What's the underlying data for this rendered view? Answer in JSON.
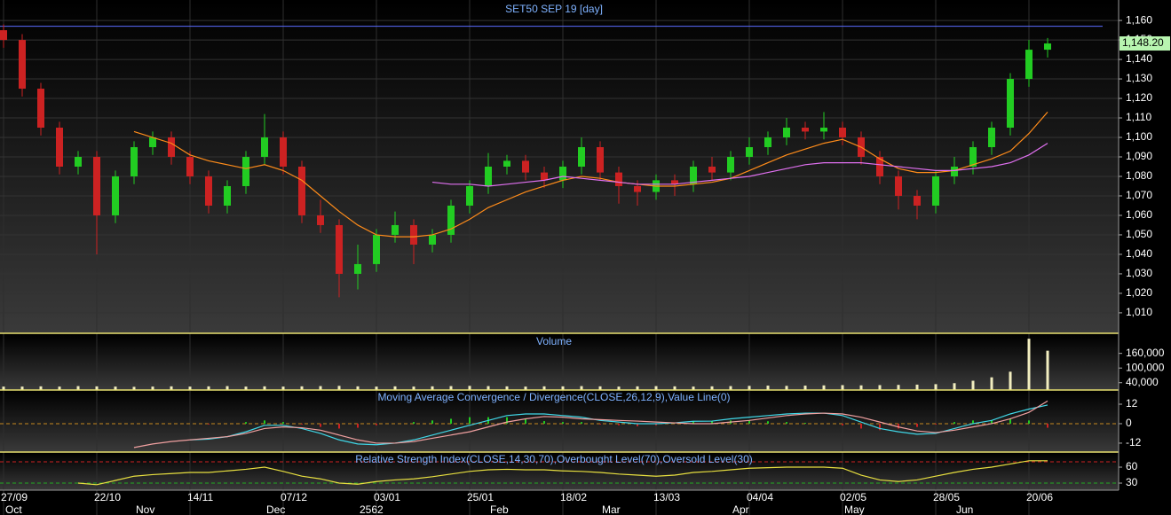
{
  "chart_data": [
    {
      "type": "candlestick",
      "title": "SET50 SEP 19   [day]",
      "categories": [
        "27/09",
        null,
        null,
        null,
        null,
        "22/10",
        null,
        null,
        null,
        null,
        "14/11",
        null,
        null,
        null,
        null,
        "07/12",
        null,
        null,
        null,
        null,
        "03/01",
        null,
        null,
        null,
        null,
        "25/01",
        null,
        null,
        null,
        null,
        "18/02",
        null,
        null,
        null,
        null,
        "13/03",
        null,
        null,
        null,
        null,
        "04/04",
        null,
        null,
        null,
        null,
        "02/05",
        null,
        null,
        null,
        null,
        "28/05",
        null,
        null,
        null,
        null,
        "20/06",
        null
      ],
      "months": [
        "Oct",
        null,
        null,
        null,
        null,
        null,
        null,
        "Nov",
        null,
        null,
        null,
        null,
        null,
        null,
        "Dec",
        null,
        null,
        null,
        null,
        "2562",
        null,
        null,
        null,
        null,
        null,
        null,
        "Feb",
        null,
        null,
        null,
        null,
        null,
        "Mar",
        null,
        null,
        null,
        null,
        null,
        null,
        "Apr",
        null,
        null,
        null,
        null,
        null,
        "May",
        null,
        null,
        null,
        null,
        null,
        "Jun",
        null,
        null,
        null,
        null,
        null
      ],
      "open": [
        1155,
        1150,
        1125,
        1105,
        1085,
        1090,
        1060,
        1080,
        1095,
        1100,
        1090,
        1080,
        1065,
        1075,
        1090,
        1100,
        1085,
        1060,
        1055,
        1030,
        1035,
        1050,
        1055,
        1045,
        1050,
        1065,
        1075,
        1085,
        1088,
        1082,
        1078,
        1085,
        1095,
        1082,
        1075,
        1072,
        1078,
        1076,
        1085,
        1082,
        1090,
        1095,
        1100,
        1105,
        1103,
        1105,
        1100,
        1090,
        1080,
        1070,
        1065,
        1080,
        1085,
        1095,
        1105,
        1130,
        1145
      ],
      "high": [
        1158,
        1153,
        1128,
        1108,
        1093,
        1093,
        1083,
        1098,
        1103,
        1103,
        1093,
        1083,
        1078,
        1093,
        1112,
        1103,
        1088,
        1068,
        1058,
        1045,
        1053,
        1062,
        1058,
        1053,
        1068,
        1078,
        1092,
        1091,
        1091,
        1085,
        1088,
        1100,
        1098,
        1085,
        1078,
        1081,
        1081,
        1088,
        1090,
        1093,
        1100,
        1103,
        1110,
        1108,
        1113,
        1108,
        1103,
        1093,
        1083,
        1073,
        1083,
        1090,
        1098,
        1108,
        1133,
        1150,
        1151
      ],
      "low": [
        1146,
        1121,
        1101,
        1081,
        1081,
        1040,
        1056,
        1076,
        1091,
        1086,
        1076,
        1061,
        1061,
        1071,
        1086,
        1081,
        1056,
        1051,
        1018,
        1022,
        1031,
        1046,
        1035,
        1041,
        1046,
        1061,
        1071,
        1081,
        1078,
        1074,
        1074,
        1081,
        1078,
        1066,
        1065,
        1068,
        1070,
        1072,
        1078,
        1078,
        1086,
        1091,
        1096,
        1099,
        1099,
        1096,
        1086,
        1076,
        1063,
        1058,
        1061,
        1076,
        1081,
        1091,
        1101,
        1126,
        1141
      ],
      "close": [
        1150,
        1125,
        1105,
        1085,
        1090,
        1060,
        1080,
        1095,
        1100,
        1090,
        1080,
        1065,
        1075,
        1090,
        1100,
        1085,
        1060,
        1055,
        1030,
        1035,
        1050,
        1055,
        1045,
        1050,
        1065,
        1075,
        1085,
        1088,
        1082,
        1078,
        1085,
        1095,
        1082,
        1075,
        1072,
        1078,
        1076,
        1085,
        1082,
        1090,
        1095,
        1100,
        1105,
        1103,
        1105,
        1100,
        1090,
        1080,
        1070,
        1065,
        1080,
        1085,
        1095,
        1105,
        1130,
        1145,
        1148.2
      ],
      "last_label": "1,148.20",
      "up_color": "#22cc22",
      "down_color": "#cc2222",
      "series": [
        {
          "color": "#ff8c1a",
          "values": [
            null,
            null,
            null,
            null,
            null,
            null,
            null,
            1103,
            1100,
            1097,
            1091,
            1088,
            1086,
            1084,
            1086,
            1083,
            1078,
            1070,
            1062,
            1055,
            1050,
            1049,
            1049,
            1050,
            1053,
            1058,
            1064,
            1068,
            1072,
            1075,
            1078,
            1080,
            1079,
            1077,
            1076,
            1075,
            1075,
            1076,
            1077,
            1079,
            1083,
            1087,
            1091,
            1094,
            1097,
            1099,
            1095,
            1089,
            1084,
            1082,
            1082,
            1083,
            1086,
            1089,
            1093,
            1102,
            1113
          ]
        },
        {
          "color": "#e070f0",
          "values": [
            null,
            null,
            null,
            null,
            null,
            null,
            null,
            null,
            null,
            null,
            null,
            null,
            null,
            null,
            null,
            null,
            null,
            null,
            null,
            null,
            null,
            null,
            null,
            1077,
            1076,
            1076,
            1075,
            1076,
            1077,
            1078,
            1080,
            1079,
            1078,
            1077,
            1076,
            1076,
            1076,
            1077,
            1078,
            1079,
            1080,
            1082,
            1084,
            1086,
            1087,
            1087,
            1087,
            1086,
            1085,
            1084,
            1083,
            1083,
            1084,
            1085,
            1087,
            1091,
            1097
          ]
        }
      ],
      "hline": {
        "value": 1157,
        "color": "#5a6cff"
      },
      "ylim": [
        999.5,
        1170.5
      ],
      "yticks": [
        {
          "value": 1010,
          "label": "1,010"
        },
        {
          "value": 1020,
          "label": "1,020"
        },
        {
          "value": 1030,
          "label": "1,030"
        },
        {
          "value": 1040,
          "label": "1,040"
        },
        {
          "value": 1050,
          "label": "1,050"
        },
        {
          "value": 1060,
          "label": "1,060"
        },
        {
          "value": 1070,
          "label": "1,070"
        },
        {
          "value": 1080,
          "label": "1,080"
        },
        {
          "value": 1090,
          "label": "1,090"
        },
        {
          "value": 1100,
          "label": "1,100"
        },
        {
          "value": 1110,
          "label": "1,110"
        },
        {
          "value": 1120,
          "label": "1,120"
        },
        {
          "value": 1130,
          "label": "1,130"
        },
        {
          "value": 1140,
          "label": "1,140"
        },
        {
          "value": 1150,
          "label": "1,150"
        },
        {
          "value": 1160,
          "label": "1,160"
        }
      ],
      "grid": true
    },
    {
      "type": "bar",
      "title": "Volume",
      "color": "#f2eec0",
      "values": [
        24000,
        24000,
        25000,
        24000,
        26000,
        25000,
        24000,
        23000,
        24000,
        25000,
        24000,
        25000,
        26000,
        24000,
        25000,
        24000,
        25000,
        26000,
        27000,
        25000,
        24000,
        25000,
        24000,
        25000,
        26000,
        27000,
        26000,
        25000,
        24000,
        25000,
        25000,
        26000,
        25000,
        24000,
        25000,
        26000,
        25000,
        24000,
        25000,
        26000,
        27000,
        28000,
        27000,
        28000,
        29000,
        30000,
        29000,
        30000,
        31000,
        32000,
        34000,
        38000,
        48000,
        62000,
        85000,
        220000,
        171000
      ],
      "ylim": [
        10000,
        235000
      ],
      "yticks": [
        {
          "value": 40000,
          "label": "40,000"
        },
        {
          "value": 100000,
          "label": "100,000"
        },
        {
          "value": 160000,
          "label": "160,000"
        }
      ]
    },
    {
      "type": "macd",
      "title": "Moving Average Convergence / Divergence(CLOSE,26,12,9),Value Line(0)",
      "series": [
        {
          "color": "#40d8e8",
          "values": [
            null,
            null,
            null,
            null,
            null,
            null,
            null,
            null,
            null,
            null,
            -10,
            -9.5,
            -8,
            -5,
            -1,
            -1,
            -3,
            -6,
            -10,
            -12.5,
            -13,
            -12,
            -10,
            -7,
            -4,
            -1,
            2,
            5,
            6,
            6,
            5,
            4,
            2,
            1,
            0,
            0,
            0.5,
            1.5,
            1.6,
            3,
            4,
            5,
            6,
            6.5,
            6.5,
            5,
            1,
            -3,
            -5,
            -6.5,
            -6,
            -3,
            0,
            2,
            6,
            9,
            11.5
          ]
        },
        {
          "color": "#f0a0a0",
          "values": [
            null,
            null,
            null,
            null,
            null,
            null,
            null,
            -14.7,
            -12.5,
            -11,
            -10,
            -9,
            -8,
            -6,
            -3,
            -2,
            -2.5,
            -4,
            -7,
            -10,
            -12,
            -12,
            -11,
            -9,
            -7,
            -5,
            -2,
            1,
            3,
            4.4,
            4,
            3,
            2.5,
            2,
            1.6,
            1,
            0.5,
            0,
            0,
            1,
            2,
            3.5,
            5,
            6,
            6.5,
            6,
            4,
            1,
            -2,
            -4.5,
            -5.5,
            -4,
            -2,
            0,
            3,
            7,
            14
          ]
        }
      ],
      "histogram": [
        null,
        null,
        null,
        null,
        null,
        null,
        null,
        null,
        null,
        null,
        0,
        -0.5,
        0,
        1,
        2,
        1,
        -0.5,
        -2,
        -3,
        -2.5,
        -1,
        0,
        1,
        2,
        3,
        4,
        4,
        4,
        3,
        1.6,
        1,
        1,
        -0.5,
        -1,
        -1.6,
        -1,
        0,
        1.5,
        1.6,
        2,
        2,
        1.5,
        1,
        0.5,
        0,
        -1,
        -3,
        -4,
        -3,
        -2,
        -0.5,
        1,
        2,
        2,
        3,
        2,
        -2.5
      ],
      "up_color": "#22cc22",
      "down_color": "#cc2222",
      "levels": [
        {
          "value": 0,
          "color": "#c88a20"
        }
      ],
      "ylim": [
        -17.5,
        20.2
      ],
      "yticks": [
        -12,
        0,
        12
      ]
    },
    {
      "type": "line",
      "title": "Relative Strength Index(CLOSE,14,30,70),Overbought Level(70),Oversold Level(30)",
      "series": [
        {
          "color": "#e8e040",
          "values": [
            null,
            null,
            null,
            null,
            30,
            27,
            35,
            43,
            46,
            48,
            50,
            50,
            53,
            56,
            60,
            52,
            43,
            38,
            30,
            28,
            33,
            36,
            38,
            42,
            47,
            52,
            55,
            56,
            55,
            55,
            53,
            52,
            50,
            47,
            45,
            43,
            45,
            50,
            52,
            55,
            58,
            59,
            60,
            60,
            60,
            58,
            45,
            36,
            33,
            36,
            43,
            50,
            56,
            60,
            66,
            72,
            72
          ]
        }
      ],
      "levels": [
        {
          "value": 70,
          "color": "#cc2222"
        },
        {
          "value": 30,
          "color": "#22aa22"
        }
      ],
      "ylim": [
        16.7,
        86.7
      ],
      "yticks": [
        30,
        60
      ]
    }
  ]
}
